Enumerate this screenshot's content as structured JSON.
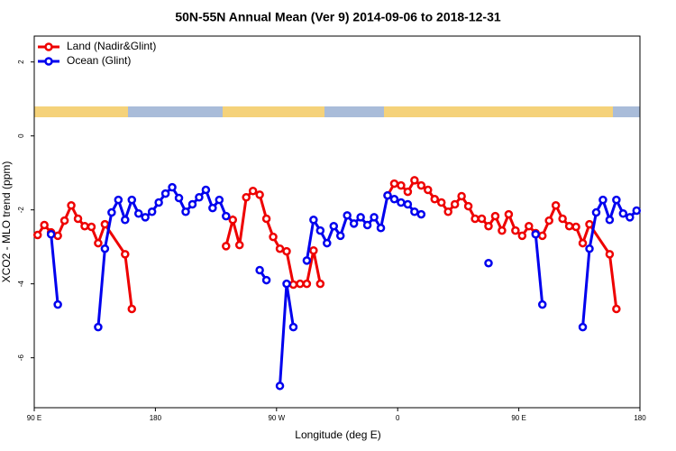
{
  "chart_data": {
    "type": "line",
    "title": "50N-55N Annual Mean (Ver 9)   2014-09-06 to 2018-12-31",
    "x_label": "Longitude (deg E)",
    "y_label": "XCO2 - MLO trend (ppm)",
    "xlim": [
      90,
      540
    ],
    "ylim": [
      -7.35,
      2.7
    ],
    "xticks": [
      {
        "value": 90,
        "label": "90 E"
      },
      180,
      {
        "value": 270,
        "label": "90 W"
      },
      {
        "value": 360,
        "label": "0"
      },
      {
        "value": 450,
        "label": "90 E"
      },
      {
        "value": 540,
        "label": "180"
      }
    ],
    "yticks": [
      -6,
      -4,
      -2,
      0,
      2
    ],
    "legend": "top-left",
    "series": [
      {
        "name": "Land (Nadir&Glint)",
        "color": "#ee0000",
        "x": [
          92.5,
          97.5,
          102.5,
          107.5,
          112.5,
          117.5,
          122.5,
          127.5,
          132.5,
          137.5,
          142.5,
          157.5,
          162.5,
          null,
          232.5,
          237.5,
          242.5,
          247.5,
          252.5,
          257.5,
          262.5,
          267.5,
          272.5,
          277.5,
          282.5,
          287.5,
          292.5,
          297.5,
          302.5,
          null,
          352.5,
          357.5,
          362.5,
          367.5,
          372.5,
          377.5,
          382.5,
          387.5,
          392.5,
          397.5,
          402.5,
          407.5,
          412.5,
          417.5,
          422.5,
          427.5,
          432.5,
          437.5,
          442.5,
          447.5,
          452.5,
          457.5,
          462.5,
          467.5,
          472.5,
          477.5,
          482.5,
          487.5,
          492.5,
          497.5,
          502.5,
          517.5,
          522.5
        ],
        "values": [
          -2.68,
          -2.41,
          -2.61,
          -2.7,
          -2.29,
          -1.88,
          -2.24,
          -2.44,
          -2.46,
          -2.9,
          -2.39,
          -3.2,
          -4.68,
          null,
          -2.98,
          -2.27,
          -2.95,
          -1.66,
          -1.49,
          -1.59,
          -2.24,
          -2.73,
          -3.05,
          -3.12,
          -4.02,
          -4.0,
          -4.0,
          -3.1,
          -4.0,
          null,
          -1.61,
          -1.29,
          -1.34,
          -1.51,
          -1.2,
          -1.34,
          -1.46,
          -1.71,
          -1.8,
          -2.05,
          -1.85,
          -1.63,
          -1.9,
          -2.24,
          -2.24,
          -2.44,
          -2.17,
          -2.56,
          -2.12,
          -2.56,
          -2.7,
          -2.44,
          -2.63,
          -2.7,
          -2.29,
          -1.88,
          -2.24,
          -2.44,
          -2.46,
          -2.9,
          -2.39,
          -3.2,
          -4.68
        ]
      },
      {
        "name": "Ocean (Glint)",
        "color": "#0000ee",
        "x": [
          102.5,
          107.5,
          null,
          137.5,
          142.5,
          147.5,
          152.5,
          157.5,
          162.5,
          167.5,
          172.5,
          177.5,
          182.5,
          187.5,
          192.5,
          197.5,
          202.5,
          207.5,
          212.5,
          217.5,
          222.5,
          227.5,
          232.5,
          null,
          257.5,
          262.5,
          null,
          272.5,
          277.5,
          282.5,
          null,
          292.5,
          297.5,
          302.5,
          307.5,
          312.5,
          317.5,
          322.5,
          327.5,
          332.5,
          337.5,
          342.5,
          347.5,
          352.5,
          357.5,
          362.5,
          367.5,
          372.5,
          377.5,
          null,
          427.5,
          null,
          462.5,
          467.5,
          null,
          497.5,
          502.5,
          507.5,
          512.5,
          517.5,
          522.5,
          527.5,
          532.5,
          537.5
        ],
        "values": [
          -2.66,
          -4.56,
          null,
          -5.17,
          -3.05,
          -2.07,
          -1.73,
          -2.27,
          -1.73,
          -2.1,
          -2.2,
          -2.05,
          -1.8,
          -1.56,
          -1.39,
          -1.68,
          -2.05,
          -1.85,
          -1.66,
          -1.46,
          -1.95,
          -1.73,
          -2.17,
          null,
          -3.63,
          -3.9,
          null,
          -6.76,
          -4.0,
          -5.17,
          null,
          -3.37,
          -2.27,
          -2.56,
          -2.9,
          -2.44,
          -2.7,
          -2.15,
          -2.37,
          -2.2,
          -2.41,
          -2.2,
          -2.49,
          -1.61,
          -1.71,
          -1.8,
          -1.85,
          -2.05,
          -2.12,
          null,
          -3.44,
          null,
          -2.66,
          -4.56,
          null,
          -5.17,
          -3.05,
          -2.07,
          -1.73,
          -2.27,
          -1.73,
          -2.1,
          -2.2,
          -2.02
        ]
      }
    ]
  }
}
